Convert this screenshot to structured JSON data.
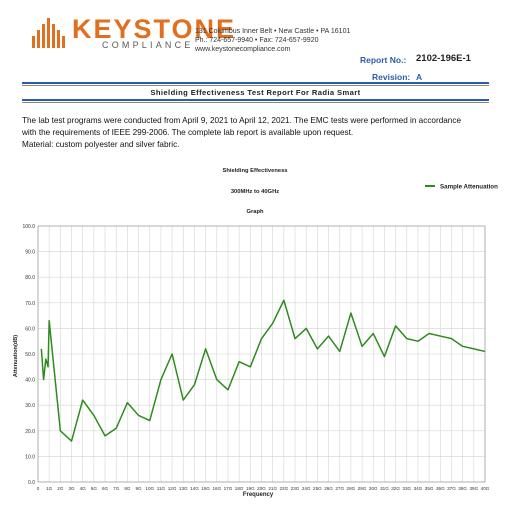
{
  "brand": {
    "name": "KEYSTONE",
    "tagline": "COMPLIANCE",
    "address_lines": [
      "131 Columbus Inner Belt • New Castle • PA 16101",
      "Ph.: 724-657-9940 • Fax: 724-657-9920",
      "www.keystonecompliance.com"
    ],
    "accent": "#e07020"
  },
  "report": {
    "number_label": "Report No.:",
    "number": "2102-196E-1",
    "revision_label": "Revision:",
    "revision": "A"
  },
  "document_title": "Shielding Effectiveness Test Report For Radia Smart",
  "body_lines": [
    "The lab test programs were conducted from April 9, 2021 to April 12, 2021. The EMC tests were performed in accordance",
    "with the requirements of IEEE 299-2006. The complete lab report is available upon request.",
    "Material: custom polyester and silver fabric."
  ],
  "chart_data": {
    "type": "line",
    "title": "Shielding Effectiveness",
    "subtitle": "300MHz to 40GHz",
    "subtitle2": "Graph",
    "xlabel": "Frequency",
    "ylabel": "Attenuation(dB)",
    "ylim": [
      0,
      100
    ],
    "yticks": [
      "0.0",
      "10.0",
      "20.0",
      "30.0",
      "40.0",
      "50.0",
      "60.0",
      "70.0",
      "80.0",
      "90.0",
      "100.0"
    ],
    "xticks": [
      "0",
      "1G",
      "2G",
      "3G",
      "4G",
      "5G",
      "6G",
      "7G",
      "8G",
      "9G",
      "10G",
      "11G",
      "12G",
      "13G",
      "14G",
      "15G",
      "16G",
      "17G",
      "18G",
      "19G",
      "20G",
      "21G",
      "22G",
      "23G",
      "24G",
      "25G",
      "26G",
      "27G",
      "28G",
      "29G",
      "30G",
      "31G",
      "32G",
      "33G",
      "34G",
      "35G",
      "36G",
      "37G",
      "38G",
      "39G",
      "40G"
    ],
    "grid": true,
    "legend_position": "top-right",
    "line_color": "#2e8b1e",
    "series": [
      {
        "name": "Sample Attenuation",
        "x": [
          0.3,
          0.5,
          0.7,
          0.9,
          1.0,
          2.0,
          3.0,
          4.0,
          5.0,
          6.0,
          7.0,
          8.0,
          9.0,
          10.0,
          11.0,
          12.0,
          13.0,
          14.0,
          15.0,
          16.0,
          17.0,
          18.0,
          19.0,
          20.0,
          21.0,
          22.0,
          23.0,
          24.0,
          25.0,
          26.0,
          27.0,
          28.0,
          29.0,
          30.0,
          31.0,
          32.0,
          33.0,
          34.0,
          35.0,
          36.0,
          37.0,
          38.0,
          39.0,
          40.0
        ],
        "values": [
          52,
          40,
          48,
          45,
          63,
          20,
          16,
          32,
          26,
          18,
          21,
          31,
          26,
          24,
          40,
          50,
          32,
          38,
          52,
          40,
          36,
          47,
          45,
          56,
          62,
          71,
          56,
          60,
          52,
          57,
          51,
          66,
          53,
          58,
          49,
          61,
          56,
          55,
          58,
          57,
          56,
          53,
          52,
          51
        ]
      }
    ]
  }
}
